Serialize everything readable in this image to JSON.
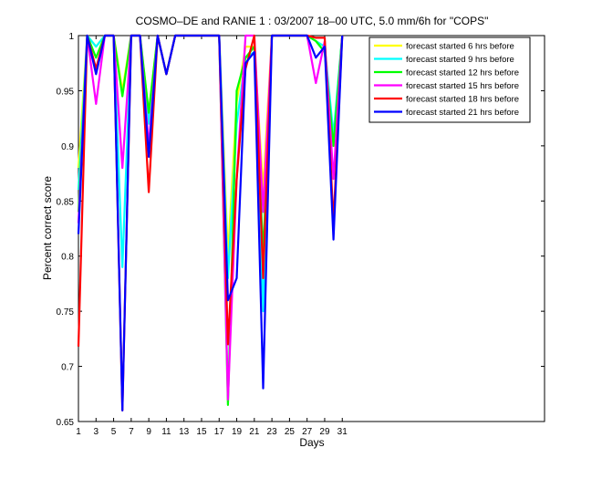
{
  "chart_data": {
    "type": "line",
    "title": "COSMO–DE and RANIE 1 : 03/2007 18–00 UTC, 5.0 mm/6h for \"COPS\"",
    "xlabel": "Days",
    "ylabel": "Percent correct score",
    "xlim": [
      1,
      54
    ],
    "ylim": [
      0.65,
      1
    ],
    "xticks": [
      1,
      3,
      5,
      7,
      9,
      11,
      13,
      15,
      17,
      19,
      21,
      23,
      25,
      27,
      29,
      31
    ],
    "yticks": [
      0.65,
      0.7,
      0.75,
      0.8,
      0.85,
      0.9,
      0.95,
      1
    ],
    "ytick_labels": [
      "0.65",
      "0.7",
      "0.75",
      "0.8",
      "0.85",
      "0.9",
      "0.95",
      "1"
    ],
    "grid": false,
    "legend_position": "top-right",
    "x": [
      1,
      2,
      3,
      4,
      5,
      6,
      7,
      8,
      9,
      10,
      11,
      12,
      13,
      14,
      15,
      16,
      17,
      18,
      19,
      20,
      21,
      22,
      23,
      24,
      25,
      26,
      27,
      28,
      29,
      30,
      31
    ],
    "series": [
      {
        "name": "forecast started  6 hrs before",
        "color": "#ffff00",
        "values": [
          0.88,
          1,
          0.99,
          1,
          1,
          0.95,
          1,
          1,
          0.93,
          1,
          0.965,
          1,
          1,
          1,
          1,
          1,
          1,
          0.8,
          0.94,
          0.99,
          0.99,
          0.86,
          1,
          1,
          1,
          1,
          1,
          0.995,
          0.99,
          0.9,
          1
        ]
      },
      {
        "name": "forecast started  9 hrs before",
        "color": "#00ffff",
        "values": [
          0.86,
          1,
          0.99,
          1,
          1,
          0.79,
          1,
          1,
          0.92,
          1,
          0.965,
          1,
          1,
          1,
          1,
          1,
          1,
          0.78,
          0.92,
          0.98,
          0.985,
          0.75,
          1,
          1,
          1,
          1,
          1,
          0.995,
          0.99,
          0.91,
          1
        ]
      },
      {
        "name": "forecast started 12 hrs before",
        "color": "#00ff00",
        "values": [
          0.84,
          1,
          0.98,
          1,
          1,
          0.945,
          1,
          1,
          0.93,
          1,
          0.965,
          1,
          1,
          1,
          1,
          1,
          1,
          0.665,
          0.95,
          0.98,
          0.99,
          0.8,
          1,
          1,
          1,
          1,
          1,
          0.995,
          0.985,
          0.9,
          1
        ]
      },
      {
        "name": "forecast started 15 hrs before",
        "color": "#ff00ff",
        "values": [
          0.83,
          1,
          0.938,
          1,
          1,
          0.88,
          1,
          1,
          0.9,
          1,
          0.965,
          1,
          1,
          1,
          1,
          1,
          1,
          0.67,
          0.87,
          1,
          1,
          0.84,
          1,
          1,
          1,
          1,
          1,
          0.957,
          0.995,
          0.87,
          1
        ]
      },
      {
        "name": "forecast started 18 hrs before",
        "color": "#ff0000",
        "values": [
          0.718,
          1,
          0.97,
          1,
          1,
          0.66,
          1,
          1,
          0.858,
          1,
          0.965,
          1,
          1,
          1,
          1,
          1,
          1,
          0.72,
          0.87,
          0.97,
          1,
          0.78,
          1,
          1,
          1,
          1,
          1,
          0.998,
          0.998,
          0.83,
          1
        ]
      },
      {
        "name": "forecast started 21 hrs before",
        "color": "#0000ff",
        "values": [
          0.82,
          1,
          0.965,
          1,
          1,
          0.66,
          1,
          1,
          0.89,
          1,
          0.965,
          1,
          1,
          1,
          1,
          1,
          1,
          0.76,
          0.78,
          0.975,
          0.985,
          0.68,
          1,
          1,
          1,
          1,
          1,
          0.98,
          0.99,
          0.815,
          1
        ]
      }
    ]
  }
}
